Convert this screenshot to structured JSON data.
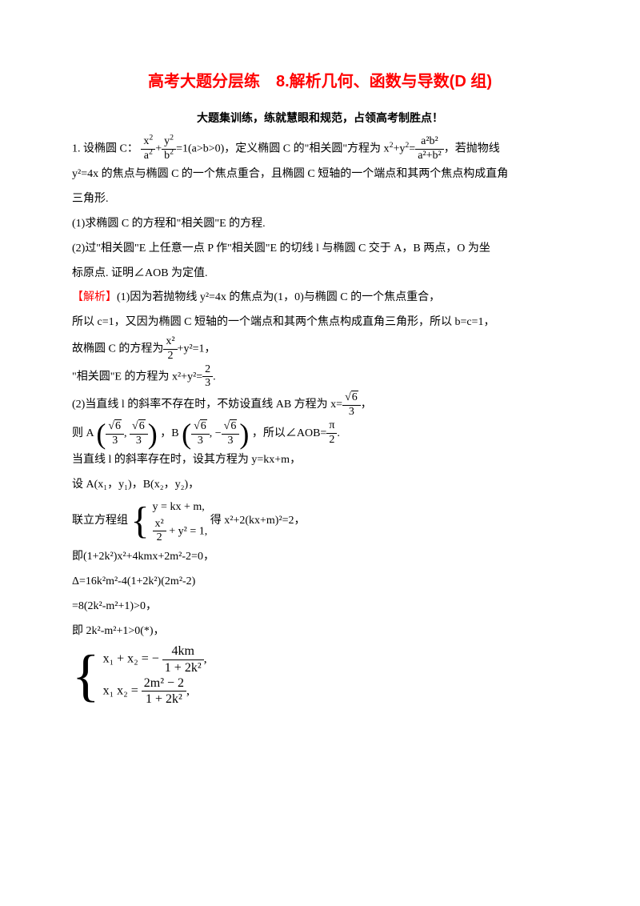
{
  "title": "高考大题分层练　8.解析几何、函数与导数(D 组)",
  "subtitle": "大题集训练，练就慧眼和规范，占领高考制胜点！",
  "lines": {
    "l1a": "1. 设椭圆 C：",
    "l1b": "=1(a>b>0)，定义椭圆 C 的\"相关圆\"方程为 x",
    "l1c": "+y",
    "l1d": "=",
    "l1e": "，若抛物线",
    "l2": "y²=4x 的焦点与椭圆 C 的一个焦点重合，且椭圆 C 短轴的一个端点和其两个焦点构成直角",
    "l3": "三角形.",
    "l4": "(1)求椭圆 C 的方程和\"相关圆\"E 的方程.",
    "l5": "(2)过\"相关圆\"E 上任意一点 P 作\"相关圆\"E 的切线 l 与椭圆 C 交于 A，B 两点，O 为坐",
    "l6": "标原点. 证明∠AOB 为定值.",
    "l7a": "【解析】",
    "l7b": "(1)因为若抛物线 y²=4x 的焦点为(1，0)与椭圆 C 的一个焦点重合，",
    "l8": "所以 c=1，又因为椭圆 C 短轴的一个端点和其两个焦点构成直角三角形，所以 b=c=1，",
    "l9a": "故椭圆 C 的方程为",
    "l9b": "+y²=1，",
    "l10a": "\"相关圆\"E 的方程为 x²+y²=",
    "l10b": ".",
    "l11a": "(2)当直线 l 的斜率不存在时，不妨设直线 AB 方程为 x=",
    "l11b": "，",
    "l12a": "则 A",
    "l12b": "，B",
    "l12c": "，所以∠AOB=",
    "l12d": ".",
    "l13": "当直线 l 的斜率存在时，设其方程为 y=kx+m，",
    "l14": "设 A(x₁，y₁)，B(x₂，y₂)，",
    "l15a": "联立方程组",
    "l15b": "得 x²+2(kx+m)²=2，",
    "l16": "即(1+2k²)x²+4kmx+2m²-2=0，",
    "l17": "Δ=16k²m²-4(1+2k²)(2m²-2)",
    "l18": "=8(2k²-m²+1)>0，",
    "l19": "即 2k²-m²+1>0(*)，"
  },
  "math": {
    "frac1": {
      "num_a": "x",
      "num_b": "y",
      "den_a": "a",
      "den_b": "b"
    },
    "frac2": {
      "num": "a²b²",
      "den": "a²+b²"
    },
    "frac3": {
      "num": "x²",
      "den": "2"
    },
    "frac4": {
      "num": "2",
      "den": "3"
    },
    "frac5": {
      "num": "6",
      "den": "3"
    },
    "frac6": {
      "num": "π",
      "den": "2"
    },
    "sys1": {
      "r1": "y = kx + m,",
      "r2a": "x²",
      "r2b": "2",
      "r2c": " + y² = 1,"
    },
    "sys2": {
      "r1a": "x₁ + x₂ = − ",
      "r1b": "4km",
      "r1c": "1 + 2k²",
      "r1d": ",",
      "r2a": "x₁ x₂ = ",
      "r2b": "2m² − 2",
      "r2c": "1 + 2k²",
      "r2d": ","
    }
  },
  "colors": {
    "title": "#ff0000",
    "text": "#000000",
    "bg": "#ffffff"
  }
}
